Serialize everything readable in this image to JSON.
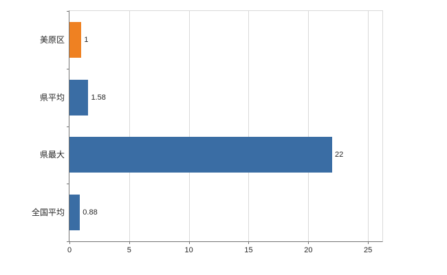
{
  "chart_data": {
    "type": "bar",
    "orientation": "horizontal",
    "title": "",
    "xlabel": "",
    "ylabel": "",
    "categories": [
      "美原区",
      "県平均",
      "県最大",
      "全国平均"
    ],
    "values": [
      1,
      1.58,
      22,
      0.88
    ],
    "value_labels": [
      "1",
      "1.58",
      "22",
      "0.88"
    ],
    "bar_colors": [
      "#ef8122",
      "#3a6da4",
      "#3a6da4",
      "#3a6da4"
    ],
    "x_ticks": [
      0,
      5,
      10,
      15,
      20,
      25
    ],
    "x_tick_labels": [
      "0",
      "5",
      "10",
      "15",
      "20",
      "25"
    ],
    "xlim": [
      0,
      26.2
    ],
    "grid": true,
    "legend": "none",
    "grid_color": "#d9d9d9",
    "axis_color": "#737373",
    "label_color": "#262626"
  }
}
